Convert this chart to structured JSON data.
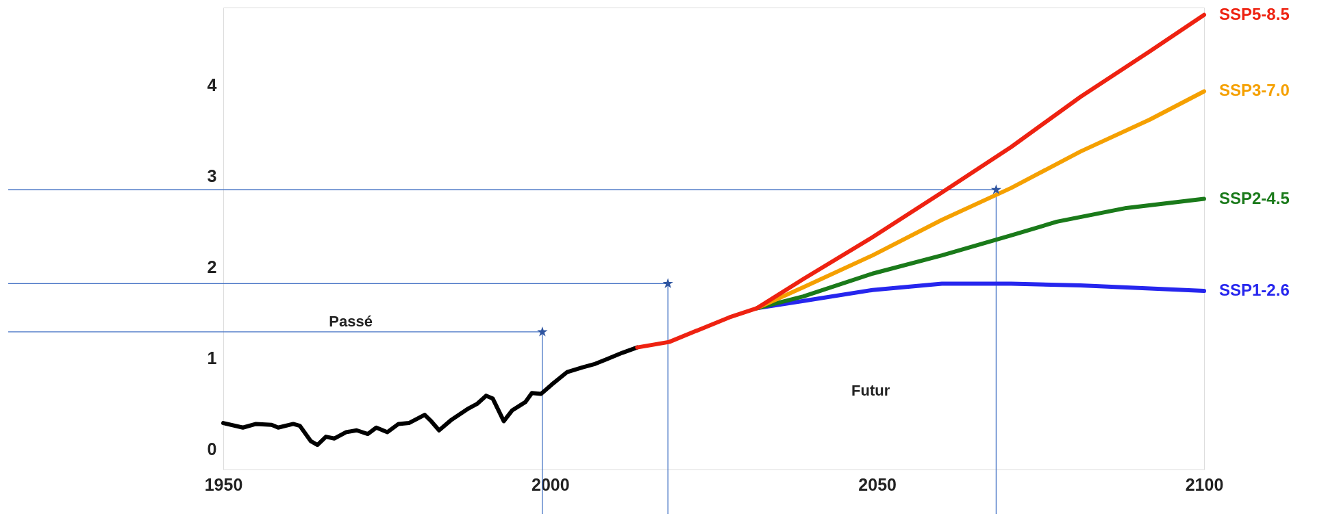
{
  "chart_data": {
    "type": "line",
    "xlim": [
      1950,
      2100
    ],
    "ylim": [
      -0.22,
      4.85
    ],
    "xticks": [
      1950,
      2000,
      2050,
      2100
    ],
    "yticks": [
      0,
      1,
      2,
      3,
      4
    ],
    "grid": false,
    "series": [
      {
        "color": "#000000",
        "x": [
          1950,
          1953,
          1955,
          1957.4,
          1958.4,
          1960.7,
          1961.7,
          1963.4,
          1964.4,
          1965.7,
          1967,
          1968.8,
          1970.4,
          1972.1,
          1973.4,
          1975.1,
          1976.8,
          1978.4,
          1980.8,
          1981.8,
          1983,
          1984.8,
          1987.5,
          1988.8,
          1990.2,
          1991.2,
          1992.9,
          1994.2,
          1996.2,
          1997.2,
          1998.6,
          2000.2,
          2002.6,
          2004.9,
          2006.9,
          2008.6,
          2011,
          2013.3
        ],
        "values": [
          0.29,
          0.24,
          0.28,
          0.27,
          0.24,
          0.28,
          0.26,
          0.09,
          0.05,
          0.14,
          0.12,
          0.19,
          0.21,
          0.17,
          0.24,
          0.19,
          0.28,
          0.29,
          0.38,
          0.31,
          0.21,
          0.32,
          0.45,
          0.5,
          0.59,
          0.56,
          0.31,
          0.43,
          0.52,
          0.62,
          0.61,
          0.71,
          0.85,
          0.9,
          0.94,
          0.99,
          1.06,
          1.12
        ]
      },
      {
        "name": "SSP1-2.6",
        "color": "#2626ee",
        "x": [
          2031.6,
          2038.7,
          2049.3,
          2059.9,
          2070.5,
          2081.1,
          2100
        ],
        "values": [
          1.55,
          1.63,
          1.75,
          1.82,
          1.82,
          1.8,
          1.74
        ]
      },
      {
        "name": "SSP2-4.5",
        "color": "#1a7a1a",
        "x": [
          2031.6,
          2038.7,
          2049.3,
          2059.9,
          2070.5,
          2077.5,
          2088.1,
          2100
        ],
        "values": [
          1.55,
          1.68,
          1.93,
          2.13,
          2.35,
          2.5,
          2.65,
          2.75
        ]
      },
      {
        "name": "SSP3-7.0",
        "color": "#f5a000",
        "x": [
          2031.6,
          2038.7,
          2049.3,
          2059.9,
          2070.5,
          2081.1,
          2091.7,
          2100
        ],
        "values": [
          1.55,
          1.78,
          2.13,
          2.52,
          2.87,
          3.27,
          3.62,
          3.93
        ]
      },
      {
        "name": "SSP5-8.5",
        "color": "#ee2211",
        "x": [
          2013.3,
          2018.2,
          2027.4,
          2031.6,
          2038.7,
          2049.3,
          2059.9,
          2070.5,
          2081.1,
          2091.7,
          2100
        ],
        "values": [
          1.12,
          1.18,
          1.45,
          1.55,
          1.87,
          2.33,
          2.82,
          3.32,
          3.87,
          4.37,
          4.77
        ]
      },
      {
        "type": "scatter",
        "marker": "star",
        "color": "#2f55a0",
        "x": [
          1998.8,
          2018.0,
          2068.2
        ],
        "values": [
          1.29,
          1.82,
          2.85
        ]
      }
    ],
    "ref_lines": [
      {
        "axis": "y",
        "value": 1.29,
        "color": "#4472c4"
      },
      {
        "axis": "y",
        "value": 1.82,
        "color": "#4472c4"
      },
      {
        "axis": "y",
        "value": 2.85,
        "color": "#4472c4"
      },
      {
        "axis": "x",
        "value": 1998.8,
        "color": "#4472c4"
      },
      {
        "axis": "x",
        "value": 2018.0,
        "color": "#4472c4"
      },
      {
        "axis": "x",
        "value": 2068.2,
        "color": "#4472c4"
      }
    ],
    "annotations": [
      "Passé",
      "Futur"
    ]
  }
}
